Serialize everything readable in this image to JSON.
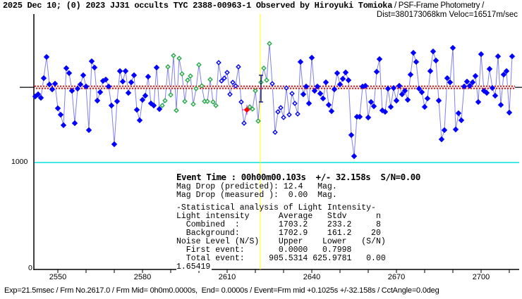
{
  "header": {
    "title_bold": "2025 Dec 10; (0) 2023 JJ31 occults TYC 2388-00963-1 Observed by Hiroyuki Tomioka",
    "title_suffix": " / PSF-Frame Photometry /",
    "dist_line": "Dist=380173068km Veloc=16517m/sec"
  },
  "stats": {
    "event_time": "Event Time : 00h00m00.103s  +/- 32.158s  S/N=0.00",
    "lines": [
      "Mag Drop (predicted): 12.4   Mag.",
      "Mag Drop (measured ):  0.00  Mag."
    ],
    "lines2": [
      "-Statistical analysis of Light Intensity-",
      "Light intensity      Average   Stdv      n",
      "  Combined  :        1703.2    233.2     8",
      "  Background:        1702.9    161.2    20",
      "Noise Level (N/S)    Upper    Lower   (S/N)",
      "  First event:       0.0000   0.7998",
      "  Total event:     905.5314 625.9781   0.00"
    ],
    "ratio": "1.65419"
  },
  "footer": "Exp=21.5msec / Frm No.2617.0 / Frm Mid= 0h0m0.0000s,  End= 0.0000s / Event=Frm mid +0.1025s +/-32.158s / CctAngle=0.0deg",
  "chart_data": {
    "type": "line",
    "x_ticks": [
      "2550",
      "2580",
      "2610",
      "2640",
      "2670",
      "2700"
    ],
    "y_ticks": [
      "1000",
      "0"
    ],
    "ylim": [
      0,
      2388
    ],
    "xlim": [
      2542,
      2711
    ],
    "first_frame": 2542,
    "values": [
      1618,
      1638,
      1605,
      1789,
      1987,
      1730,
      1684,
      1737,
      1507,
      1447,
      1349,
      1882,
      1836,
      1671,
      1368,
      1691,
      1730,
      1816,
      1711,
      1303,
      1947,
      1888,
      1579,
      1658,
      1763,
      1776,
      1711,
      1533,
      1171,
      1572,
      1855,
      1757,
      1855,
      1651,
      1750,
      1816,
      1493,
      1395,
      1586,
      1625,
      1803,
      1553,
      1533,
      1888,
      1500,
      1533,
      1579,
      1895,
      1632,
      2000,
      1487,
      1974,
      1829,
      1572,
      1770,
      1809,
      1546,
      1691,
      1914,
      1717,
      1572,
      1572,
      1776,
      1566,
      1533,
      1934,
      1763,
      1789,
      1842,
      1638,
      1750,
      1717,
      1895,
      1566,
      1368,
      1493,
      1520,
      1500,
      1671,
      1388,
      1750,
      1882,
      1770,
      2112,
      1737,
      1283,
      1474,
      1513,
      1421,
      1697,
      1447,
      1645,
      1553,
      1454,
      1941,
      1638,
      1711,
      1553,
      1980,
      1671,
      1711,
      1645,
      1599,
      1750,
      1539,
      1480,
      1684,
      1836,
      1730,
      1783,
      1842,
      1770,
      1257,
      1059,
      1428,
      1428,
      1711,
      1717,
      1421,
      1566,
      1526,
      1849,
      1967,
      1487,
      1474,
      1691,
      1520,
      1697,
      1579,
      1717,
      1638,
      1671,
      1586,
      1822,
      2026,
      1941,
      1691,
      1658,
      1520,
      1599,
      1855,
      2039,
      1954,
      1579,
      1217,
      1303,
      1789,
      1750,
      2072,
      1309,
      1461,
      1395,
      1711,
      1757,
      1717,
      1750,
      1809,
      1566,
      2013,
      1671,
      1651,
      1875,
      1697,
      1625,
      1993,
      1539,
      1822,
      1855,
      1467,
      1993
    ],
    "point_styles": [
      {
        "style": "filled-blue",
        "from": 2542,
        "to": 2586
      },
      {
        "style": "open-green",
        "from": 2587,
        "to": 2606
      },
      {
        "style": "open-blue",
        "from": 2607,
        "to": 2616
      },
      {
        "style": "filled-red",
        "from": 2617,
        "to": 2617
      },
      {
        "style": "open-green",
        "from": 2618,
        "to": 2625
      },
      {
        "style": "open-blue",
        "from": 2626,
        "to": 2635
      },
      {
        "style": "filled-blue",
        "from": 2636,
        "to": 2711
      }
    ],
    "baseline_value": 1702.9,
    "lower_level_value": 1000,
    "error_bar": {
      "frame": 2622,
      "center": 1691,
      "low": 1566,
      "high": 1816
    },
    "colors": {
      "filled-blue": "#0000ff",
      "open-blue": "#0000ff",
      "open-green": "#22aa44",
      "filled-red": "#ff0000",
      "line": "#8080f0",
      "baseline": "#ff0000",
      "lower_level": "#00e0e0",
      "event_marker": "#ffff00",
      "error_bar": "#000080",
      "crosshair": "#ff00ff"
    }
  }
}
